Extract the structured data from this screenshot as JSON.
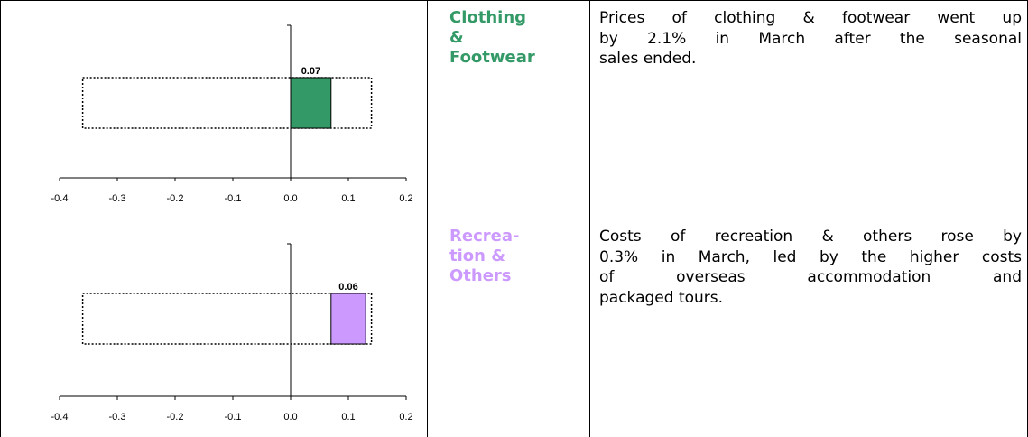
{
  "rows": [
    {
      "chart": {
        "type": "bar",
        "xlim": [
          -0.4,
          0.2
        ],
        "xticks": [
          -0.4,
          -0.3,
          -0.2,
          -0.1,
          {
            "value": 0,
            "label": "0.0"
          },
          0.1,
          0.2
        ],
        "range": [
          -0.36,
          0.14
        ],
        "value": 0.07,
        "color": "#339966"
      },
      "label": [
        "Clothing",
        "&",
        "Footwear"
      ],
      "label_color": "#339966",
      "text": [
        "Prices of clothing & footwear went up",
        "by 2.1% in March after the seasonal",
        "sales ended."
      ]
    },
    {
      "chart": {
        "type": "bar",
        "xlim": [
          -0.4,
          0.2
        ],
        "xticks": [
          -0.4,
          -0.3,
          -0.2,
          -0.1,
          {
            "value": 0,
            "label": "0.0"
          },
          0.1,
          0.2
        ],
        "range": [
          -0.36,
          0.14
        ],
        "value": 0.06,
        "color": "#cc99ff"
      },
      "label": [
        "Recrea-",
        "tion &",
        "Others"
      ],
      "label_color": "#cc99ff",
      "text": [
        "Costs of recreation & others rose by",
        "0.3% in March, led by the higher costs",
        "of overseas accommodation and",
        "packaged tours."
      ]
    }
  ]
}
